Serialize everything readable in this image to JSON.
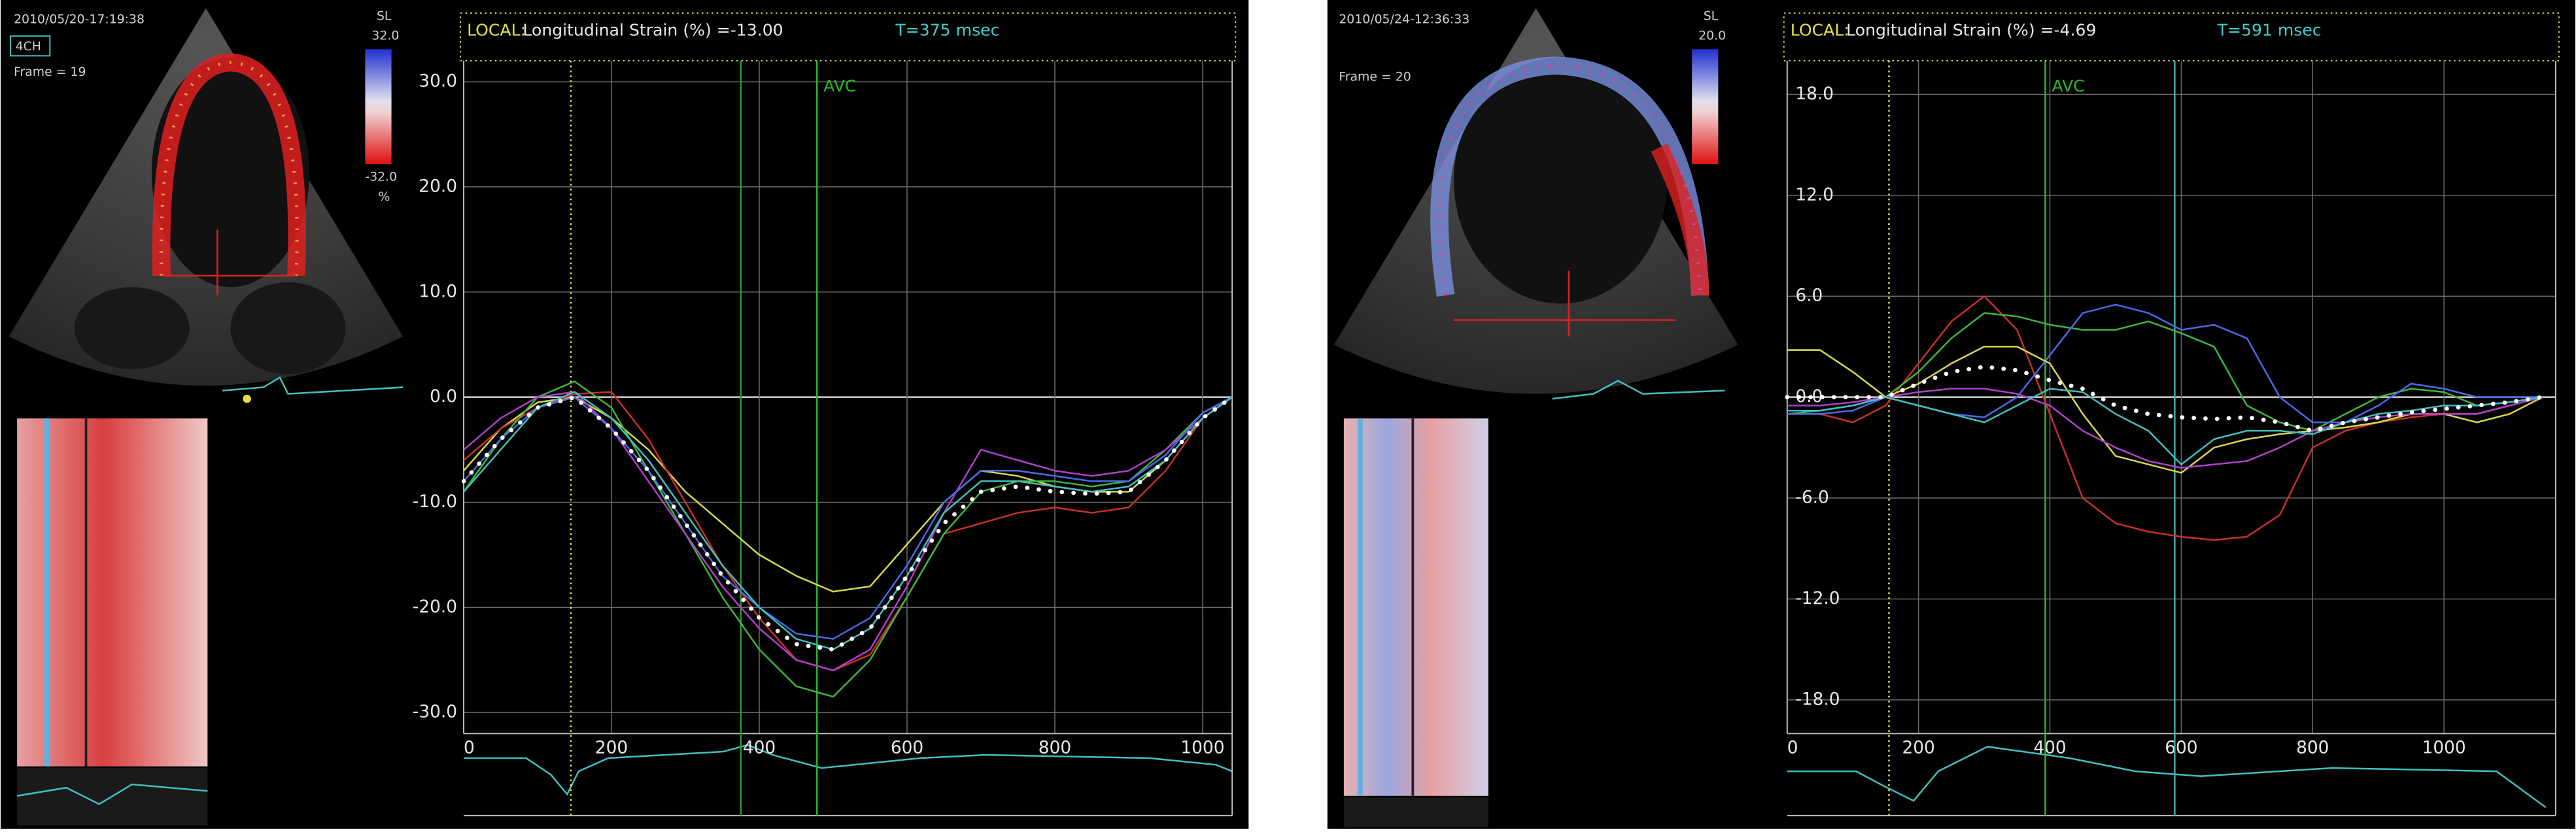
{
  "chart_data": [
    {
      "type": "line",
      "header": {
        "local": "LOCAL:",
        "measure": "Longitudinal Strain (%) =-13.00",
        "time": "T=375 msec"
      },
      "echo": {
        "timestamp": "2010/05/20-17:19:38",
        "view": "4CH",
        "frame": "Frame = 19",
        "scale_label": "SL",
        "scale_max": "32.0",
        "scale_min": "-32.0",
        "unit": "%"
      },
      "x": [
        0,
        50,
        100,
        150,
        200,
        250,
        300,
        350,
        400,
        450,
        500,
        550,
        600,
        650,
        700,
        750,
        800,
        850,
        900,
        950,
        1000,
        1040
      ],
      "series": [
        {
          "color": "#d8d84a",
          "values": [
            -7,
            -3,
            -0.5,
            0,
            -2,
            -5,
            -9,
            -12,
            -15,
            -17,
            -18.5,
            -18,
            -14,
            -10,
            -7,
            -7.5,
            -8.5,
            -9,
            -9,
            -6,
            -2,
            0
          ]
        },
        {
          "color": "#c8302a",
          "values": [
            -6,
            -3,
            -1,
            0.3,
            0.5,
            -4,
            -10,
            -16,
            -21,
            -25,
            -26,
            -24.5,
            -19,
            -13,
            -12,
            -11,
            -10.5,
            -11,
            -10.5,
            -7,
            -2,
            0
          ]
        },
        {
          "color": "#3cb83c",
          "values": [
            -9,
            -4,
            0,
            1.5,
            -1,
            -7,
            -13,
            -19,
            -24,
            -27.5,
            -28.5,
            -25,
            -19,
            -13,
            -9,
            -8,
            -8,
            -8.5,
            -8,
            -5,
            -1.5,
            0
          ]
        },
        {
          "color": "#b040c8",
          "values": [
            -5,
            -2,
            0,
            0.5,
            -3,
            -8,
            -13,
            -18,
            -22,
            -25,
            -26,
            -24,
            -18,
            -11,
            -5,
            -6,
            -7,
            -7.5,
            -7,
            -5,
            -2,
            0
          ]
        },
        {
          "color": "#4a6ae8",
          "values": [
            -8,
            -4,
            -1,
            0,
            -3,
            -7,
            -12,
            -17,
            -20,
            -22.5,
            -23,
            -21,
            -16,
            -10,
            -7,
            -7,
            -7.5,
            -8,
            -8,
            -5.5,
            -1.5,
            0
          ]
        },
        {
          "color": "#40c0c0",
          "values": [
            -9,
            -5,
            -1,
            0.5,
            -2,
            -6,
            -11,
            -16,
            -20,
            -23,
            -24,
            -22,
            -17,
            -11,
            -8,
            -8,
            -8.5,
            -9,
            -8.5,
            -6,
            -2,
            0
          ]
        },
        {
          "color": "#ffffff",
          "style": "dotted",
          "values": [
            -8,
            -4,
            -1,
            0,
            -3,
            -7,
            -12,
            -17,
            -21,
            -23.5,
            -24,
            -22,
            -17,
            -12,
            -9,
            -8.5,
            -9,
            -9.2,
            -9,
            -6,
            -2,
            0
          ]
        }
      ],
      "markers": [
        {
          "x": 145,
          "color": "#e8e85a",
          "style": "dotted"
        },
        {
          "x": 375,
          "color": "#2a9a2a"
        },
        {
          "x": 478,
          "color": "#2ab82a",
          "label": "AVC"
        }
      ],
      "xlim": [
        0,
        1040
      ],
      "ylim": [
        -32,
        32
      ],
      "xticks": [
        0,
        200,
        400,
        600,
        800,
        1000
      ],
      "yticks": [
        {
          "value": 30,
          "label": "30.0"
        },
        {
          "value": 20,
          "label": "20.0"
        },
        {
          "value": 10,
          "label": "10.0"
        },
        {
          "value": 0,
          "label": "0.0"
        },
        {
          "value": -10,
          "label": "-10.0"
        },
        {
          "value": -20,
          "label": "-20.0"
        },
        {
          "value": -30,
          "label": "-30.0"
        }
      ],
      "grid": true
    },
    {
      "type": "line",
      "header": {
        "local": "LOCAL:",
        "measure": "Longitudinal Strain (%) =-4.69",
        "time": "T=591 msec"
      },
      "echo": {
        "timestamp": "2010/05/24-12:36:33",
        "frame": "Frame = 20",
        "scale_label": "SL",
        "scale_max": "20.0"
      },
      "x": [
        0,
        50,
        100,
        150,
        200,
        250,
        300,
        350,
        400,
        450,
        500,
        550,
        600,
        650,
        700,
        750,
        800,
        850,
        900,
        950,
        1000,
        1050,
        1100,
        1150
      ],
      "series": [
        {
          "color": "#c8302a",
          "values": [
            -1,
            -1,
            -1.5,
            -0.5,
            2,
            4.5,
            6,
            4,
            -1,
            -6,
            -7.5,
            -8,
            -8.3,
            -8.5,
            -8.3,
            -7,
            -3,
            -2,
            -1.5,
            -1.2,
            -1,
            -1,
            -0.5,
            0
          ]
        },
        {
          "color": "#3cb83c",
          "values": [
            -1,
            -0.8,
            -0.5,
            0,
            1.5,
            3.5,
            5,
            4.8,
            4.3,
            4,
            4,
            4.5,
            3.8,
            3,
            -0.5,
            -1.5,
            -2,
            -1,
            0,
            0.5,
            0.3,
            -0.5,
            -0.3,
            0
          ]
        },
        {
          "color": "#4a6ae8",
          "values": [
            -1,
            -1,
            -0.8,
            0,
            -0.5,
            -1,
            -1.2,
            0,
            2.5,
            5,
            5.5,
            5,
            4,
            4.3,
            3.5,
            0,
            -1.5,
            -1.5,
            -0.5,
            0.8,
            0.5,
            0,
            0,
            0
          ]
        },
        {
          "color": "#d8d84a",
          "values": [
            2.8,
            2.8,
            1.5,
            0,
            0.8,
            2,
            3,
            3,
            2,
            -1,
            -3.5,
            -4,
            -4.5,
            -3,
            -2.5,
            -2.2,
            -2,
            -1.8,
            -1.5,
            -1,
            -1,
            -1.5,
            -1,
            0
          ]
        },
        {
          "color": "#b040c8",
          "values": [
            -0.5,
            -0.5,
            -0.3,
            0,
            0.3,
            0.5,
            0.5,
            0.2,
            -0.5,
            -2,
            -3,
            -3.8,
            -4.2,
            -4,
            -3.8,
            -3,
            -2,
            -1.5,
            -1.2,
            -1,
            -1,
            -1,
            -0.5,
            0
          ]
        },
        {
          "color": "#40c0c0",
          "values": [
            -0.8,
            -0.8,
            -0.5,
            0,
            -0.5,
            -1,
            -1.5,
            -0.5,
            0.5,
            0.3,
            -1,
            -2,
            -4,
            -2.5,
            -2,
            -2,
            -2.2,
            -1.5,
            -1,
            -0.8,
            -0.5,
            -0.5,
            -0.3,
            0
          ]
        },
        {
          "color": "#ffffff",
          "style": "dotted",
          "values": [
            0,
            0,
            0,
            0,
            0.8,
            1.5,
            1.8,
            1.6,
            1,
            0.5,
            -0.5,
            -1,
            -1.2,
            -1.3,
            -1.2,
            -1.5,
            -2,
            -1.5,
            -1.2,
            -0.9,
            -0.7,
            -0.5,
            -0.3,
            0
          ]
        }
      ],
      "markers": [
        {
          "x": 155,
          "color": "#e8e85a",
          "style": "dotted"
        },
        {
          "x": 393,
          "color": "#2ab82a",
          "label": "AVC"
        },
        {
          "x": 590,
          "color": "#40b0a8"
        }
      ],
      "xlim": [
        0,
        1170
      ],
      "ylim": [
        -20,
        20
      ],
      "xticks": [
        0,
        200,
        400,
        600,
        800,
        1000
      ],
      "yticks": [
        {
          "value": 18,
          "label": "18.0"
        },
        {
          "value": 12,
          "label": "12.0"
        },
        {
          "value": 6,
          "label": "6.0"
        },
        {
          "value": 0,
          "label": "0.0"
        },
        {
          "value": -6,
          "label": "-6.0"
        },
        {
          "value": -12,
          "label": "-12.0"
        },
        {
          "value": -18,
          "label": "-18.0"
        }
      ],
      "grid": true
    }
  ]
}
